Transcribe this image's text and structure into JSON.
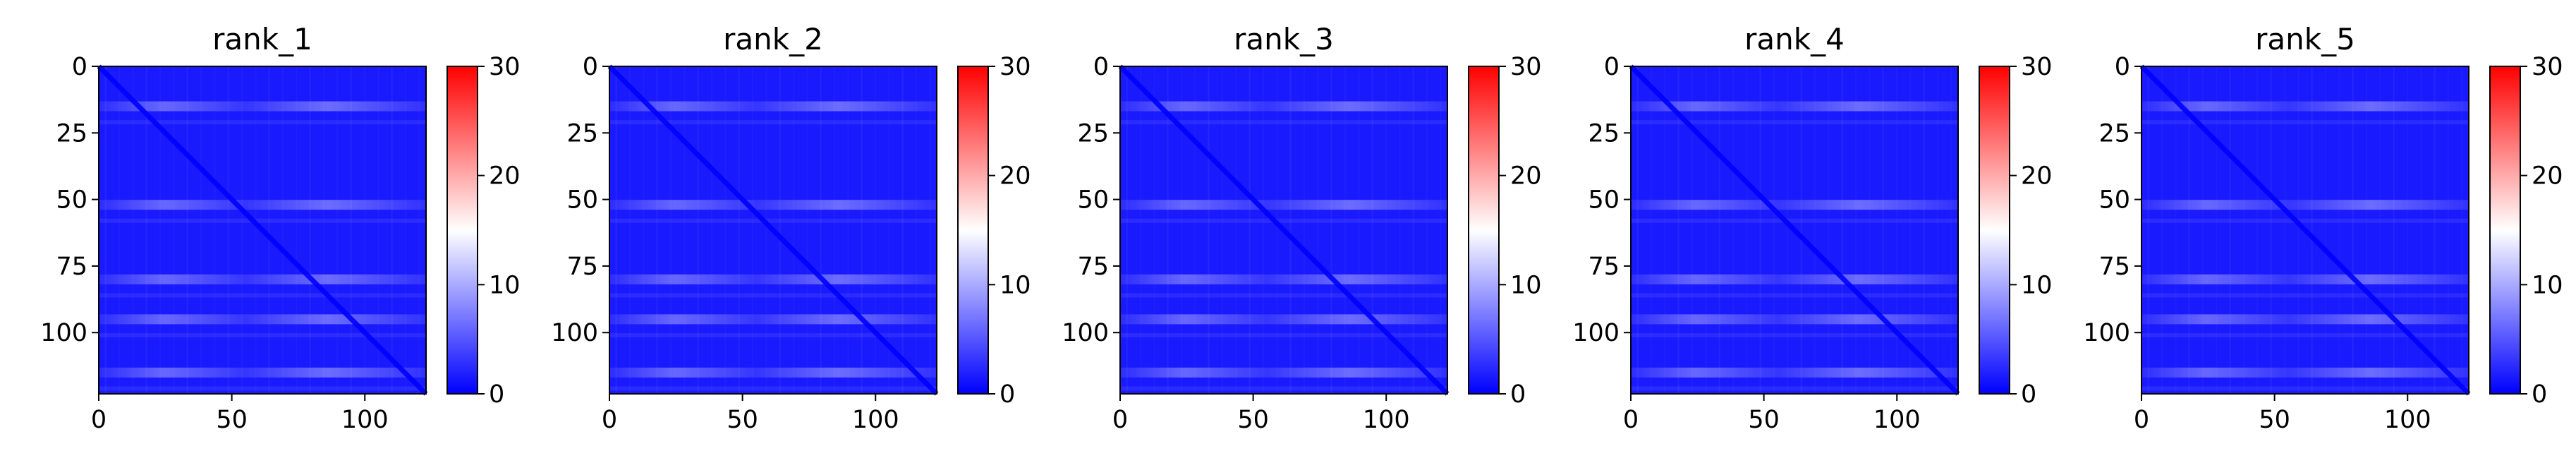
{
  "chart_data": [
    {
      "type": "heatmap",
      "title": "rank_1",
      "xlabel": "",
      "ylabel": "",
      "x_ticks": [
        0,
        50,
        100
      ],
      "y_ticks": [
        0,
        25,
        50,
        75,
        100
      ],
      "xlim": [
        0,
        123
      ],
      "ylim": [
        123,
        0
      ],
      "colorbar": {
        "min": 0,
        "max": 30,
        "ticks": [
          0,
          10,
          20,
          30
        ],
        "colormap": "bwr"
      },
      "values_summary": {
        "typical": 3,
        "diagonal": 0,
        "horizontal_band_rows": [
          15,
          52,
          80,
          95,
          115
        ],
        "band_value": 8
      }
    },
    {
      "type": "heatmap",
      "title": "rank_2",
      "xlabel": "",
      "ylabel": "",
      "x_ticks": [
        0,
        50,
        100
      ],
      "y_ticks": [
        0,
        25,
        50,
        75,
        100
      ],
      "xlim": [
        0,
        123
      ],
      "ylim": [
        123,
        0
      ],
      "colorbar": {
        "min": 0,
        "max": 30,
        "ticks": [
          0,
          10,
          20,
          30
        ],
        "colormap": "bwr"
      },
      "values_summary": {
        "typical": 3,
        "diagonal": 0,
        "horizontal_band_rows": [
          15,
          52,
          80,
          95,
          115
        ],
        "band_value": 8
      }
    },
    {
      "type": "heatmap",
      "title": "rank_3",
      "xlabel": "",
      "ylabel": "",
      "x_ticks": [
        0,
        50,
        100
      ],
      "y_ticks": [
        0,
        25,
        50,
        75,
        100
      ],
      "xlim": [
        0,
        123
      ],
      "ylim": [
        123,
        0
      ],
      "colorbar": {
        "min": 0,
        "max": 30,
        "ticks": [
          0,
          10,
          20,
          30
        ],
        "colormap": "bwr"
      },
      "values_summary": {
        "typical": 3,
        "diagonal": 0,
        "horizontal_band_rows": [
          15,
          52,
          80,
          95,
          115
        ],
        "band_value": 8
      }
    },
    {
      "type": "heatmap",
      "title": "rank_4",
      "xlabel": "",
      "ylabel": "",
      "x_ticks": [
        0,
        50,
        100
      ],
      "y_ticks": [
        0,
        25,
        50,
        75,
        100
      ],
      "xlim": [
        0,
        123
      ],
      "ylim": [
        123,
        0
      ],
      "colorbar": {
        "min": 0,
        "max": 30,
        "ticks": [
          0,
          10,
          20,
          30
        ],
        "colormap": "bwr"
      },
      "values_summary": {
        "typical": 3,
        "diagonal": 0,
        "horizontal_band_rows": [
          15,
          52,
          80,
          95,
          115
        ],
        "band_value": 8
      }
    },
    {
      "type": "heatmap",
      "title": "rank_5",
      "xlabel": "",
      "ylabel": "",
      "x_ticks": [
        0,
        50,
        100
      ],
      "y_ticks": [
        0,
        25,
        50,
        75,
        100
      ],
      "xlim": [
        0,
        123
      ],
      "ylim": [
        123,
        0
      ],
      "colorbar": {
        "min": 0,
        "max": 30,
        "ticks": [
          0,
          10,
          20,
          30
        ],
        "colormap": "bwr"
      },
      "values_summary": {
        "typical": 3,
        "diagonal": 0,
        "horizontal_band_rows": [
          15,
          52,
          80,
          95,
          115
        ],
        "band_value": 8
      }
    }
  ],
  "colors": {
    "low": "#0000ff",
    "mid": "#ffffff",
    "high": "#ff0000",
    "axis": "#000000"
  }
}
